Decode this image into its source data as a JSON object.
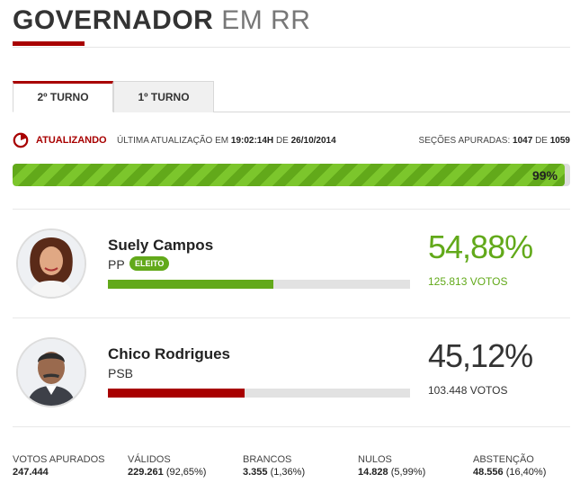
{
  "header": {
    "title_bold": "GOVERNADOR",
    "title_light": "EM RR"
  },
  "tabs": [
    {
      "label": "2º TURNO",
      "active": true
    },
    {
      "label": "1º TURNO",
      "active": false
    }
  ],
  "status": {
    "live_label": "ATUALIZANDO",
    "update_prefix": "ÚLTIMA ATUALIZAÇÃO EM",
    "update_time": "19:02:14H",
    "update_mid": "DE",
    "update_date": "26/10/2014",
    "sections_prefix": "SEÇÕES APURADAS:",
    "sections_done": "1047",
    "sections_mid": "DE",
    "sections_total": "1059"
  },
  "progress": {
    "label": "99%",
    "fraction": 0.99
  },
  "candidates": [
    {
      "name": "Suely Campos",
      "party": "PP",
      "badge": "ELEITO",
      "percent_label": "54,88%",
      "votes_label": "125.813 VOTOS",
      "bar_fraction": 0.5488,
      "color": "#62a91a"
    },
    {
      "name": "Chico Rodrigues",
      "party": "PSB",
      "badge": "",
      "percent_label": "45,12%",
      "votes_label": "103.448 VOTOS",
      "bar_fraction": 0.4512,
      "color": "#a80000"
    }
  ],
  "stats": [
    {
      "label": "VOTOS APURADOS",
      "value": "247.444",
      "detail": ""
    },
    {
      "label": "VÁLIDOS",
      "value": "229.261",
      "detail": "(92,65%)"
    },
    {
      "label": "BRANCOS",
      "value": "3.355",
      "detail": "(1,36%)"
    },
    {
      "label": "NULOS",
      "value": "14.828",
      "detail": "(5,99%)"
    },
    {
      "label": "ABSTENÇÃO",
      "value": "48.556",
      "detail": "(16,40%)"
    }
  ],
  "colors": {
    "accent": "#a80000",
    "winner": "#62a91a",
    "text": "#333333"
  }
}
